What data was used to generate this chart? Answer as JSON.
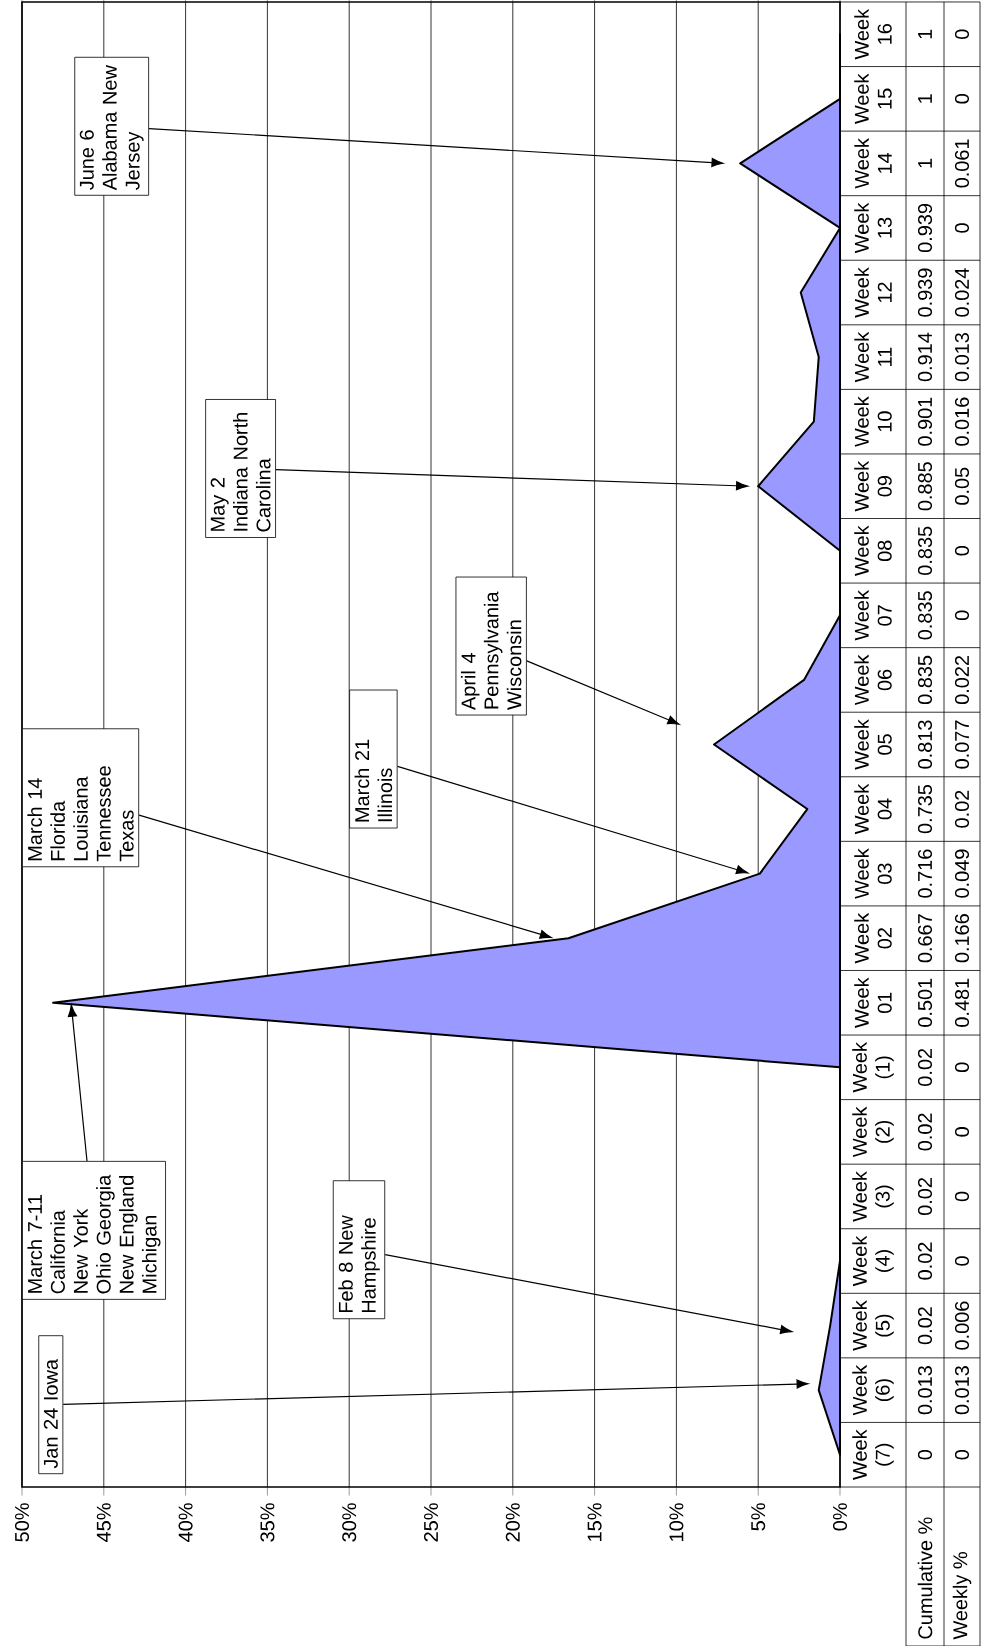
{
  "chart_data": {
    "type": "area",
    "orientation": "horizontal",
    "categories": [
      "Week 16",
      "Week 15",
      "Week 14",
      "Week 13",
      "Week 12",
      "Week 11",
      "Week 10",
      "Week 09",
      "Week 08",
      "Week 07",
      "Week 06",
      "Week 05",
      "Week 04",
      "Week 03",
      "Week 02",
      "Week 01",
      "Week (1)",
      "Week (2)",
      "Week (3)",
      "Week (4)",
      "Week (5)",
      "Week (6)",
      "Week (7)"
    ],
    "series": [
      {
        "name": "Weekly %",
        "color": "#9999ff",
        "values": [
          0,
          0,
          0.061,
          0,
          0.024,
          0.013,
          0.016,
          0.05,
          0,
          0,
          0.022,
          0.077,
          0.02,
          0.049,
          0.166,
          0.481,
          0,
          0,
          0,
          0,
          0.006,
          0.013,
          0
        ],
        "value_labels": [
          "0",
          "0",
          "0.061",
          "0",
          "0.024",
          "0.013",
          "0.016",
          "0.05",
          "0",
          "0",
          "0.022",
          "0.077",
          "0.02",
          "0.049",
          "0.166",
          "0.481",
          "0",
          "0",
          "0",
          "0",
          "0.006",
          "0.013",
          "0"
        ]
      }
    ],
    "xlim": [
      0.5,
      0
    ],
    "xticks": [
      {
        "value": 0.5,
        "label": "50%"
      },
      {
        "value": 0.45,
        "label": "45%"
      },
      {
        "value": 0.4,
        "label": "40%"
      },
      {
        "value": 0.35,
        "label": "35%"
      },
      {
        "value": 0.3,
        "label": "30%"
      },
      {
        "value": 0.25,
        "label": "25%"
      },
      {
        "value": 0.2,
        "label": "20%"
      },
      {
        "value": 0.15,
        "label": "15%"
      },
      {
        "value": 0.1,
        "label": "10%"
      },
      {
        "value": 0.05,
        "label": "5%"
      },
      {
        "value": 0,
        "label": "0%"
      }
    ],
    "grid": "x",
    "annotations": [
      "Cumulative %",
      "1",
      "1",
      "1",
      "0.939",
      "0.939",
      "0.914",
      "0.901",
      "0.885",
      "0.835",
      "0.835",
      "0.835",
      "0.813",
      "0.735",
      "0.716",
      "0.667",
      "0.501",
      "0.02",
      "0.02",
      "0.02",
      "0.02",
      "0.02",
      "0.013",
      "0",
      "Jan 24 Iowa",
      "Feb 8 New Hampshire",
      "March 7-11 California New York Ohio Georgia New England Michigan",
      "March 14 Florida Louisiana Tennessee Texas",
      "March 21 Illinois",
      "April 4 Pennsylvania Wisconsin",
      "May 2 Indiana North Carolina",
      "June 6 Alabama New Jersey"
    ]
  }
}
